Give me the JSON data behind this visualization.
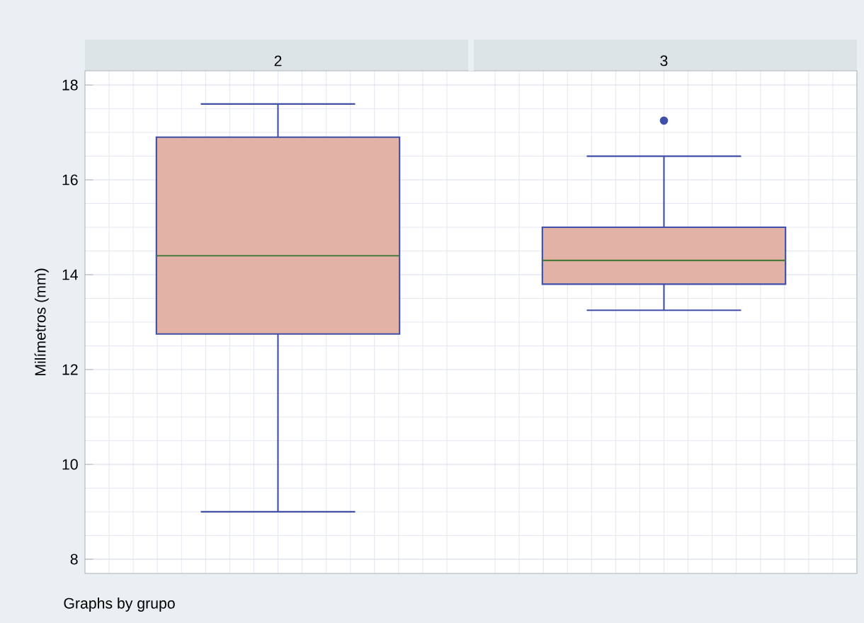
{
  "chart_data": {
    "type": "box",
    "ylabel": "Milímetros (mm)",
    "categories": [
      "2",
      "3"
    ],
    "color": "#e2b2a6",
    "boxes": [
      {
        "low": 9.0,
        "q1": 12.75,
        "median": 14.4,
        "q3": 16.9,
        "high": 17.6
      },
      {
        "low": 13.25,
        "q1": 13.8,
        "median": 14.3,
        "q3": 15.0,
        "high": 16.5,
        "outliers": [
          17.25
        ]
      }
    ],
    "ylim": [
      7.7,
      18.3
    ],
    "yticks": [
      8,
      10,
      12,
      14,
      16,
      18
    ],
    "grid": true,
    "annotations": [
      "Graphs by grupo"
    ]
  }
}
